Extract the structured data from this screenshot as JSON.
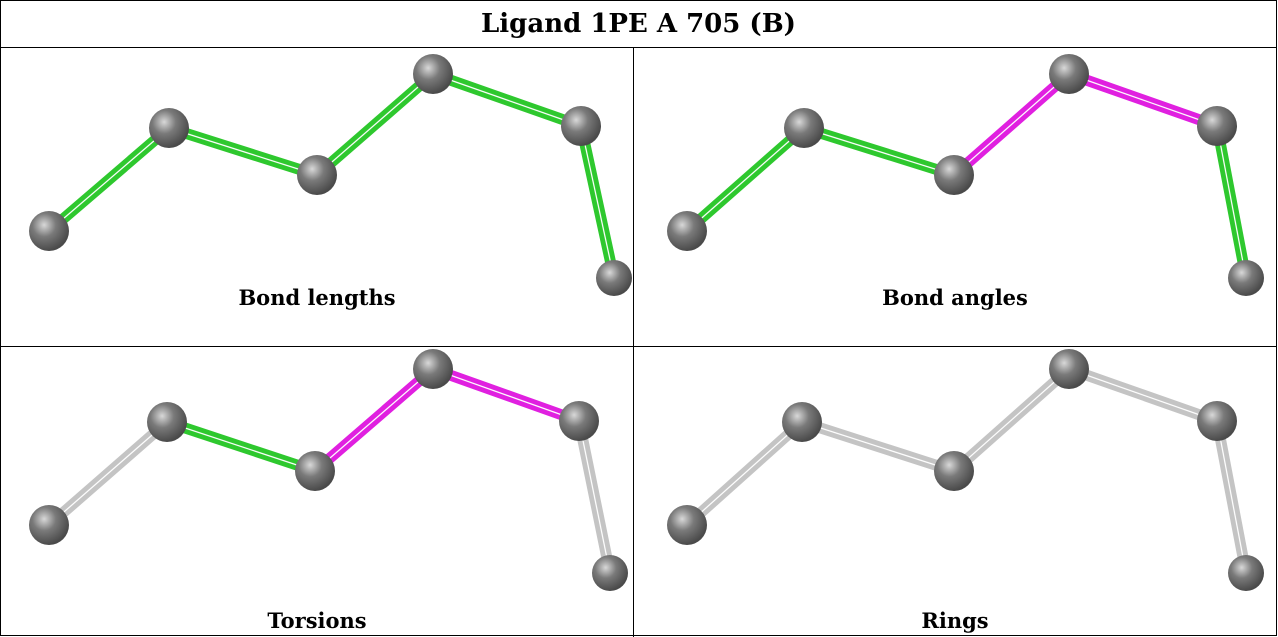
{
  "title": "Ligand 1PE A 705 (B)",
  "colors": {
    "atom": "#7a7a7a",
    "green": "#2ec82e",
    "magenta": "#e020e0",
    "gray": "#c4c4c4"
  },
  "panels": [
    {
      "label": "Bond lengths",
      "bond_colors": [
        "green",
        "green",
        "green",
        "green",
        "green",
        "green"
      ]
    },
    {
      "label": "Bond angles",
      "bond_colors": [
        "green",
        "green",
        "magenta",
        "magenta",
        "green",
        "green"
      ]
    },
    {
      "label": "Torsions",
      "bond_colors": [
        "gray",
        "green",
        "magenta",
        "magenta",
        "gray",
        "gray"
      ]
    },
    {
      "label": "Rings",
      "bond_colors": [
        "gray",
        "gray",
        "gray",
        "gray",
        "gray",
        "gray"
      ]
    }
  ]
}
